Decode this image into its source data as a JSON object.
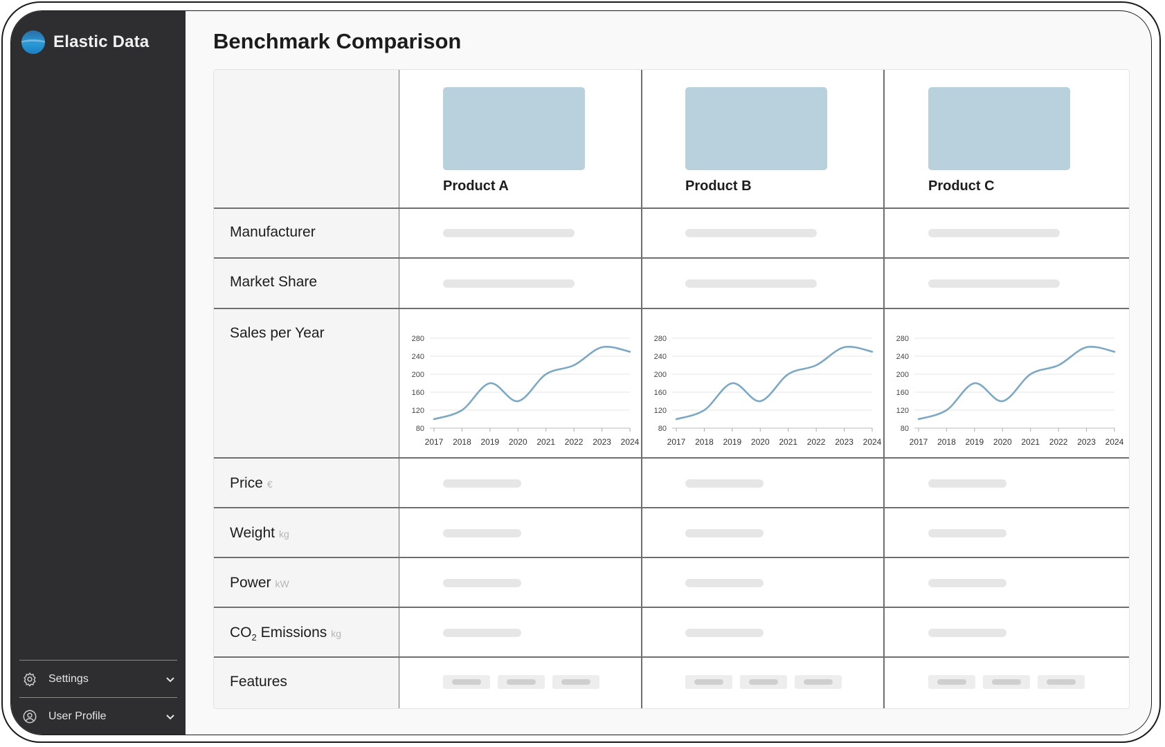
{
  "app": {
    "name": "Elastic Data"
  },
  "page": {
    "title": "Benchmark Comparison"
  },
  "sidebar": {
    "items": [
      {
        "label": "Settings",
        "icon": "gear-icon"
      },
      {
        "label": "User Profile",
        "icon": "user-circle-icon"
      }
    ]
  },
  "products": [
    {
      "name": "Product A"
    },
    {
      "name": "Product B"
    },
    {
      "name": "Product C"
    }
  ],
  "rows": {
    "manufacturer": "Manufacturer",
    "market_share": "Market Share",
    "sales": "Sales per Year",
    "price": {
      "label": "Price",
      "unit": "€"
    },
    "weight": {
      "label": "Weight",
      "unit": "kg"
    },
    "power": {
      "label": "Power",
      "unit": "kW"
    },
    "co2": {
      "label_prefix": "CO",
      "label_sub": "2",
      "label_suffix": " Emissions",
      "unit": "kg"
    },
    "features": "Features"
  },
  "colors": {
    "accent": "#7ba8c4",
    "sidebar": "#2e2e30",
    "placeholder": "#b9d0dd"
  },
  "chart_data": [
    {
      "type": "line",
      "product": "Product A",
      "x": [
        "2017",
        "2018",
        "2019",
        "2020",
        "2021",
        "2022",
        "2023",
        "2024"
      ],
      "values": [
        100,
        120,
        180,
        140,
        200,
        220,
        260,
        250
      ],
      "yticks": [
        80,
        120,
        160,
        200,
        240,
        280
      ],
      "ylim": [
        80,
        280
      ],
      "grid": true
    },
    {
      "type": "line",
      "product": "Product B",
      "x": [
        "2017",
        "2018",
        "2019",
        "2020",
        "2021",
        "2022",
        "2023",
        "2024"
      ],
      "values": [
        100,
        120,
        180,
        140,
        200,
        220,
        260,
        250
      ],
      "yticks": [
        80,
        120,
        160,
        200,
        240,
        280
      ],
      "ylim": [
        80,
        280
      ],
      "grid": true
    },
    {
      "type": "line",
      "product": "Product C",
      "x": [
        "2017",
        "2018",
        "2019",
        "2020",
        "2021",
        "2022",
        "2023",
        "2024"
      ],
      "values": [
        100,
        120,
        180,
        140,
        200,
        220,
        260,
        250
      ],
      "yticks": [
        80,
        120,
        160,
        200,
        240,
        280
      ],
      "ylim": [
        80,
        280
      ],
      "grid": true
    }
  ]
}
